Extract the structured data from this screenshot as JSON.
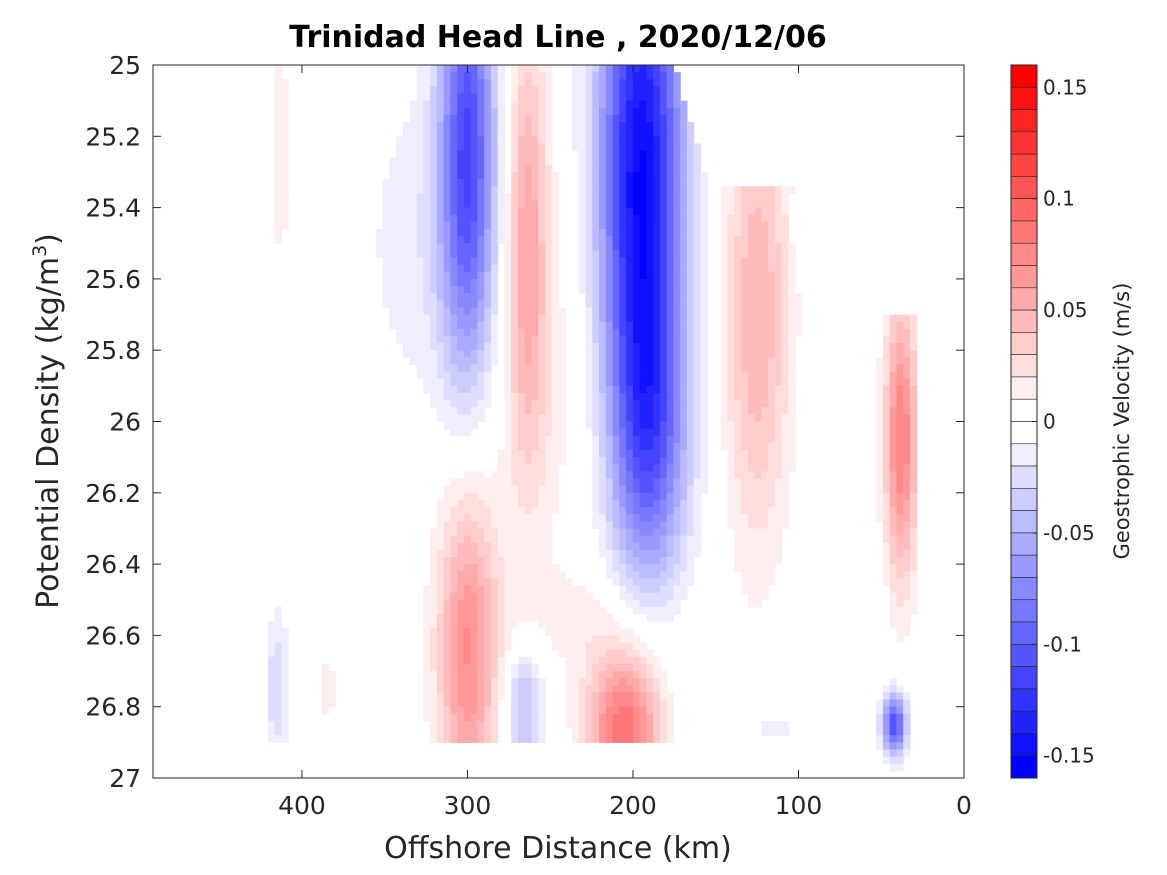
{
  "chart_data": {
    "type": "heatmap",
    "subtype": "filled-contour",
    "title": "Trinidad Head Line , 2020/12/06",
    "xlabel": "Offshore Distance (km)",
    "ylabel_main": "Potential Density (kg/m",
    "ylabel_sup": "3",
    "ylabel_end": ")",
    "xlim": [
      490,
      0
    ],
    "x_reversed": true,
    "ylim": [
      25,
      27
    ],
    "y_reversed": true,
    "xticks": [
      400,
      300,
      200,
      100,
      0
    ],
    "xtick_labels": [
      "400",
      "300",
      "200",
      "100",
      "0"
    ],
    "yticks": [
      25,
      25.2,
      25.4,
      25.6,
      25.8,
      26,
      26.2,
      26.4,
      26.6,
      26.8,
      27
    ],
    "ytick_labels": [
      "25",
      "25.2",
      "25.4",
      "25.6",
      "25.8",
      "26",
      "26.2",
      "26.4",
      "26.6",
      "26.8",
      "27"
    ],
    "colorbar": {
      "label": "Geostrophic Velocity (m/s)",
      "range": [
        -0.16,
        0.16
      ],
      "step": 0.01,
      "ticks": [
        0.15,
        0.1,
        0.05,
        0,
        -0.05,
        -0.1,
        -0.15
      ],
      "tick_labels": [
        "0.15",
        "0.1",
        "0.05",
        "0",
        "-0.05",
        "-0.1",
        "-0.15"
      ],
      "colormap": "blue-white-red",
      "neg_color": "#0000ff",
      "pos_color": "#ff0000",
      "zero_color": "#ffffff"
    },
    "features": [
      {
        "x": 413,
        "y": 25.25,
        "sx": 5,
        "sy": 0.3,
        "value": 0.015
      },
      {
        "x": 330,
        "y": 25.5,
        "sx": 26,
        "sy": 0.35,
        "value": -0.015
      },
      {
        "x": 300,
        "y": 25.25,
        "sx": 12,
        "sy": 0.45,
        "value": -0.11
      },
      {
        "x": 264,
        "y": 25.5,
        "sx": 9,
        "sy": 0.45,
        "value": 0.055
      },
      {
        "x": 246,
        "y": 25.9,
        "sx": 26,
        "sy": 0.4,
        "value": 0.012
      },
      {
        "x": 195,
        "y": 25.3,
        "sx": 18,
        "sy": 0.55,
        "value": -0.15
      },
      {
        "x": 190,
        "y": 26.05,
        "sx": 16,
        "sy": 0.3,
        "value": -0.07
      },
      {
        "x": 125,
        "y": 25.7,
        "sx": 14,
        "sy": 0.45,
        "value": 0.05
      },
      {
        "x": 85,
        "y": 25.6,
        "sx": 5,
        "sy": 0.3,
        "value": -0.01
      },
      {
        "x": 38,
        "y": 26.05,
        "sx": 7,
        "sy": 0.28,
        "value": 0.08
      },
      {
        "x": 300,
        "y": 26.65,
        "sx": 13,
        "sy": 0.35,
        "value": 0.07
      },
      {
        "x": 266,
        "y": 26.8,
        "sx": 8,
        "sy": 0.12,
        "value": -0.045
      },
      {
        "x": 205,
        "y": 26.85,
        "sx": 16,
        "sy": 0.15,
        "value": 0.09
      },
      {
        "x": 228,
        "y": 26.55,
        "sx": 40,
        "sy": 0.1,
        "value": 0.012
      },
      {
        "x": 385,
        "y": 26.75,
        "sx": 8,
        "sy": 0.12,
        "value": 0.012
      },
      {
        "x": 415,
        "y": 26.75,
        "sx": 5,
        "sy": 0.15,
        "value": -0.03
      },
      {
        "x": 120,
        "y": 26.85,
        "sx": 30,
        "sy": 0.1,
        "value": -0.012
      },
      {
        "x": 42,
        "y": 26.85,
        "sx": 5,
        "sy": 0.06,
        "value": -0.11
      }
    ],
    "data_mask": {
      "left_edge_x": 420,
      "bottom_y": 26.9,
      "notch_x": 320,
      "right_upper_x": 175,
      "right_lower_x": 40
    }
  }
}
